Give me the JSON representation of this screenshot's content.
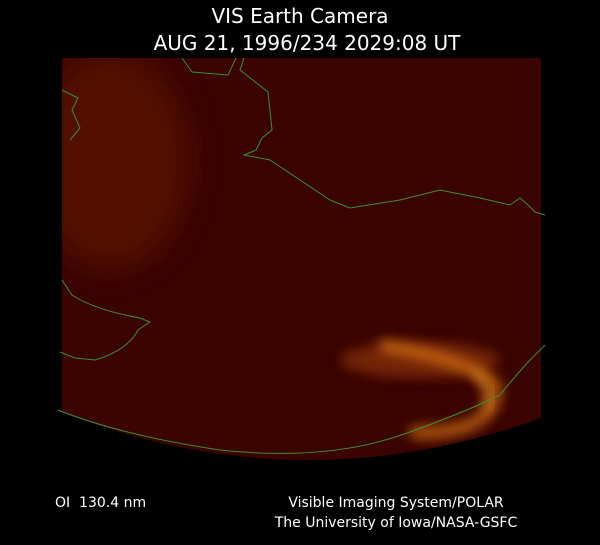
{
  "header": {
    "title": "VIS Earth Camera",
    "timestamp": "AUG 21, 1996/234 2029:08 UT"
  },
  "footer": {
    "filter": "OI  130.4 nm",
    "instrument": "Visible Imaging System/POLAR",
    "institution": "The University of Iowa/NASA-GSFC"
  }
}
